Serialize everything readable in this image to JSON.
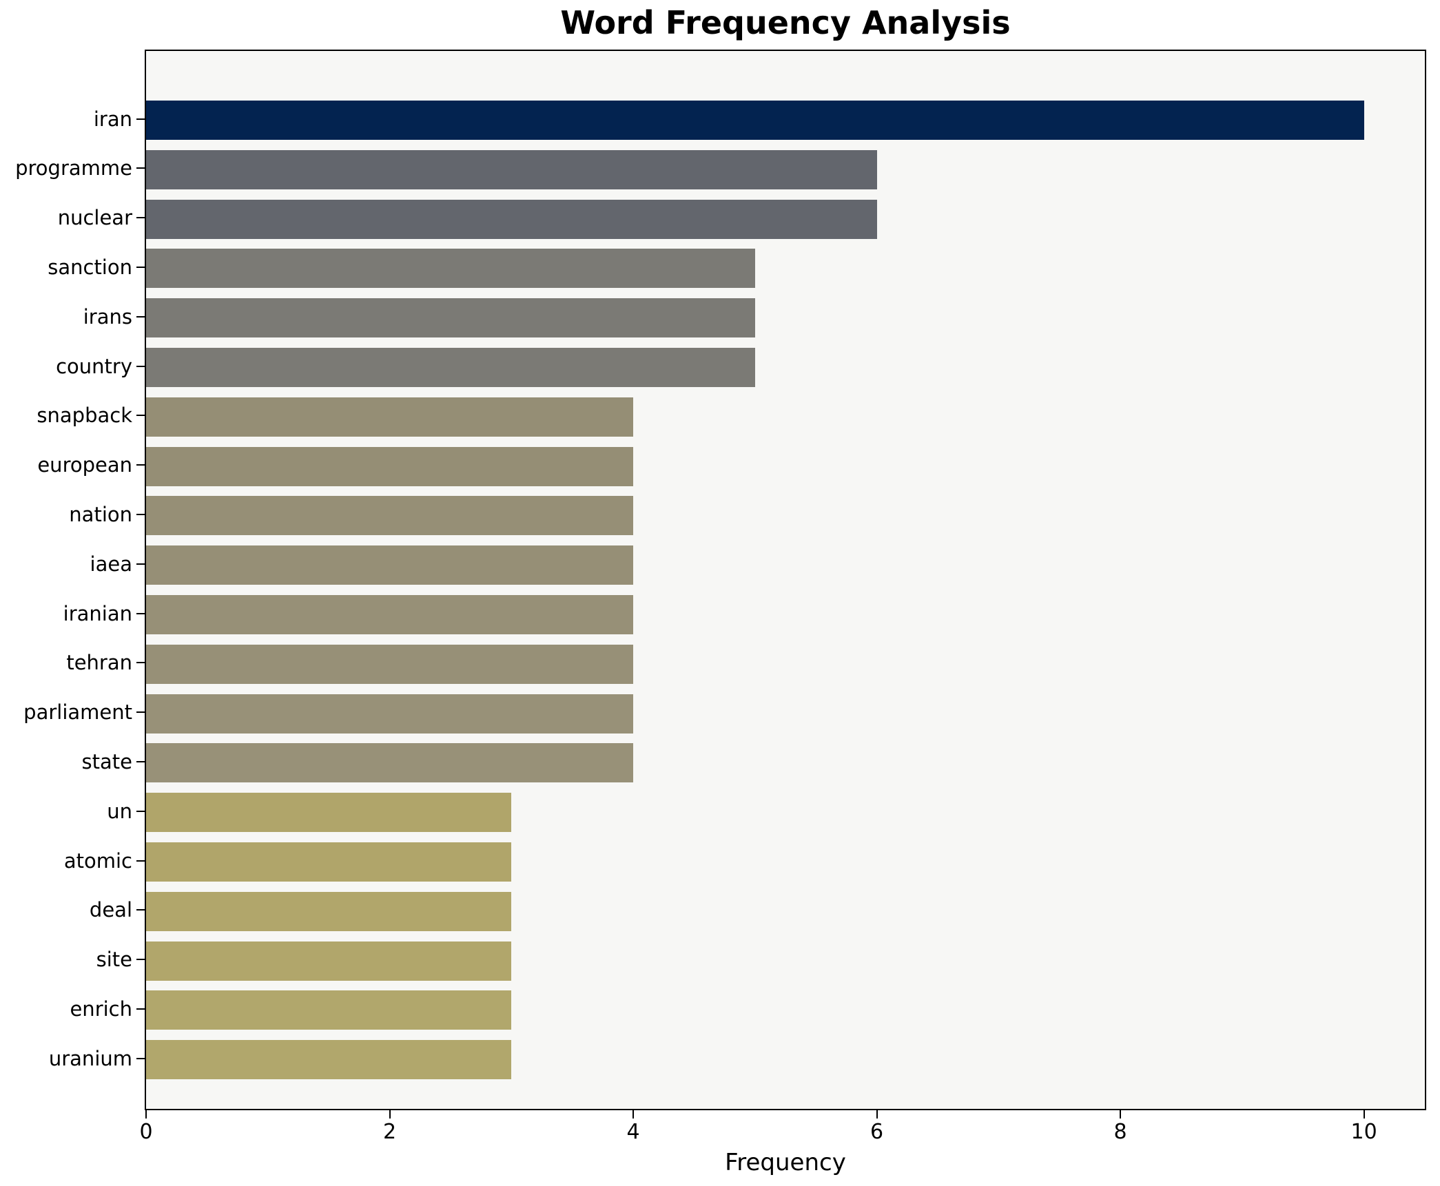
{
  "chart_data": {
    "type": "bar",
    "orientation": "horizontal",
    "title": "Word Frequency Analysis",
    "xlabel": "Frequency",
    "ylabel": "",
    "categories": [
      "iran",
      "programme",
      "nuclear",
      "sanction",
      "irans",
      "country",
      "snapback",
      "european",
      "nation",
      "iaea",
      "iranian",
      "tehran",
      "parliament",
      "state",
      "un",
      "atomic",
      "deal",
      "site",
      "enrich",
      "uranium"
    ],
    "values": [
      10,
      6,
      6,
      5,
      5,
      5,
      4,
      4,
      4,
      4,
      4,
      4,
      4,
      4,
      3,
      3,
      3,
      3,
      3,
      3
    ],
    "bar_colors": [
      "#032350",
      "#63666d",
      "#63666d",
      "#7b7a75",
      "#7b7a75",
      "#7b7a75",
      "#958e75",
      "#958e75",
      "#968f76",
      "#968f76",
      "#979077",
      "#979077",
      "#989178",
      "#989178",
      "#b0a56a",
      "#b0a56a",
      "#b1a66b",
      "#b1a66b",
      "#b1a76c",
      "#b1a76c"
    ],
    "xticks": [
      0,
      2,
      4,
      6,
      8,
      10
    ],
    "xlim": [
      0,
      10.5
    ],
    "grid": false,
    "legend_position": "none",
    "plot_bg": "#f7f7f5",
    "figure_bg": "#ffffff",
    "spine_color": "#000000",
    "text_color": "#000000"
  }
}
